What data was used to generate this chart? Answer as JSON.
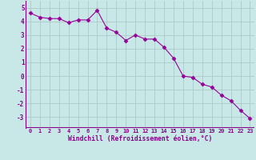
{
  "x_values": [
    0,
    1,
    2,
    3,
    4,
    5,
    6,
    7,
    8,
    9,
    10,
    11,
    12,
    13,
    14,
    15,
    16,
    17,
    18,
    19,
    20,
    21,
    22,
    23
  ],
  "y_values": [
    4.6,
    4.3,
    4.2,
    4.2,
    3.9,
    4.1,
    4.1,
    4.8,
    3.5,
    3.2,
    2.6,
    3.0,
    2.7,
    2.7,
    2.1,
    1.3,
    0.0,
    -0.1,
    -0.6,
    -0.8,
    -1.4,
    -1.8,
    -2.5,
    -3.1
  ],
  "line_color": "#990099",
  "marker": "D",
  "marker_size": 2.5,
  "bg_color": "#c8e8e8",
  "grid_color": "#b0c8c8",
  "xlabel": "Windchill (Refroidissement éolien,°C)",
  "xlabel_color": "#880088",
  "tick_color": "#880088",
  "axis_line_color": "#880088",
  "ylim": [
    -3.8,
    5.5
  ],
  "yticks": [
    -3,
    -2,
    -1,
    0,
    1,
    2,
    3,
    4,
    5
  ],
  "xlim": [
    -0.5,
    23.5
  ],
  "bottom_bar_color": "#880088"
}
